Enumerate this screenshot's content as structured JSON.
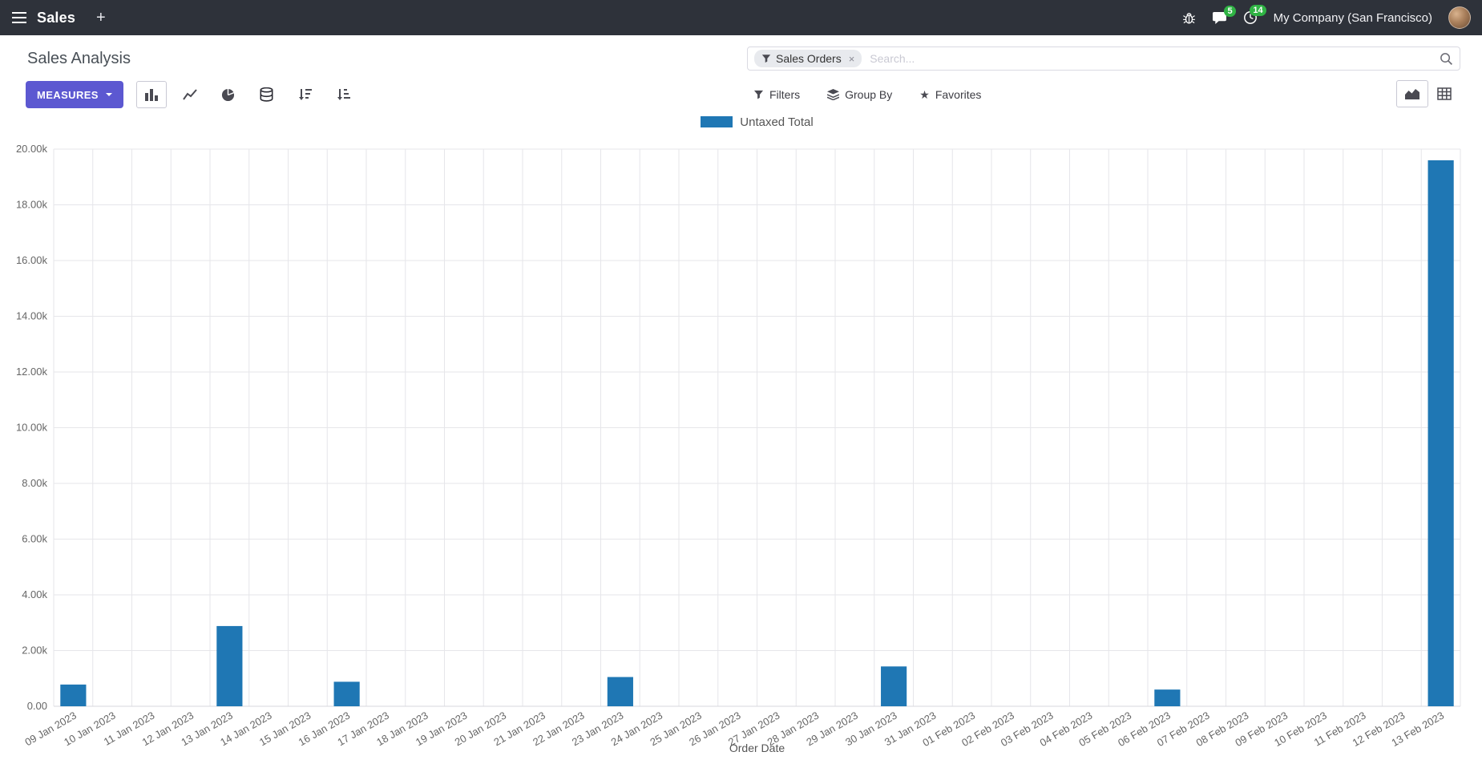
{
  "navbar": {
    "app_name": "Sales",
    "new_tab_label": "+",
    "messages_badge": "5",
    "activities_badge": "14",
    "company": "My Company (San Francisco)"
  },
  "control_panel": {
    "title": "Sales Analysis",
    "measures_label": "MEASURES",
    "search": {
      "facet_label": "Sales Orders",
      "remove_label": "×",
      "placeholder": "Search..."
    },
    "filters_label": "Filters",
    "group_by_label": "Group By",
    "favorites_label": "Favorites",
    "star_glyph": "★"
  },
  "theme": {
    "navbar_bg": "#2e323a",
    "accent": "#5c58d1",
    "badge_green": "#2fb344",
    "title_color": "#495057",
    "bar_color": "#1f77b4"
  },
  "chart_data": {
    "type": "bar",
    "title": "",
    "xlabel": "Order Date",
    "ylabel": "",
    "ylim": [
      0,
      20000
    ],
    "ytick_step": 2000,
    "ytick_labels": [
      "0.00",
      "2.00k",
      "4.00k",
      "6.00k",
      "8.00k",
      "10.00k",
      "12.00k",
      "14.00k",
      "16.00k",
      "18.00k",
      "20.00k"
    ],
    "grid": true,
    "legend_position": "top",
    "color": "#1f77b4",
    "categories": [
      "09 Jan 2023",
      "10 Jan 2023",
      "11 Jan 2023",
      "12 Jan 2023",
      "13 Jan 2023",
      "14 Jan 2023",
      "15 Jan 2023",
      "16 Jan 2023",
      "17 Jan 2023",
      "18 Jan 2023",
      "19 Jan 2023",
      "20 Jan 2023",
      "21 Jan 2023",
      "22 Jan 2023",
      "23 Jan 2023",
      "24 Jan 2023",
      "25 Jan 2023",
      "26 Jan 2023",
      "27 Jan 2023",
      "28 Jan 2023",
      "29 Jan 2023",
      "30 Jan 2023",
      "31 Jan 2023",
      "01 Feb 2023",
      "02 Feb 2023",
      "03 Feb 2023",
      "04 Feb 2023",
      "05 Feb 2023",
      "06 Feb 2023",
      "07 Feb 2023",
      "08 Feb 2023",
      "09 Feb 2023",
      "10 Feb 2023",
      "11 Feb 2023",
      "12 Feb 2023",
      "13 Feb 2023"
    ],
    "series": [
      {
        "name": "Untaxed Total",
        "values": [
          780,
          0,
          0,
          0,
          2880,
          0,
          0,
          880,
          0,
          0,
          0,
          0,
          0,
          0,
          1050,
          0,
          0,
          0,
          0,
          0,
          0,
          1430,
          0,
          0,
          0,
          0,
          0,
          0,
          600,
          0,
          0,
          0,
          0,
          0,
          0,
          19600
        ]
      }
    ]
  }
}
